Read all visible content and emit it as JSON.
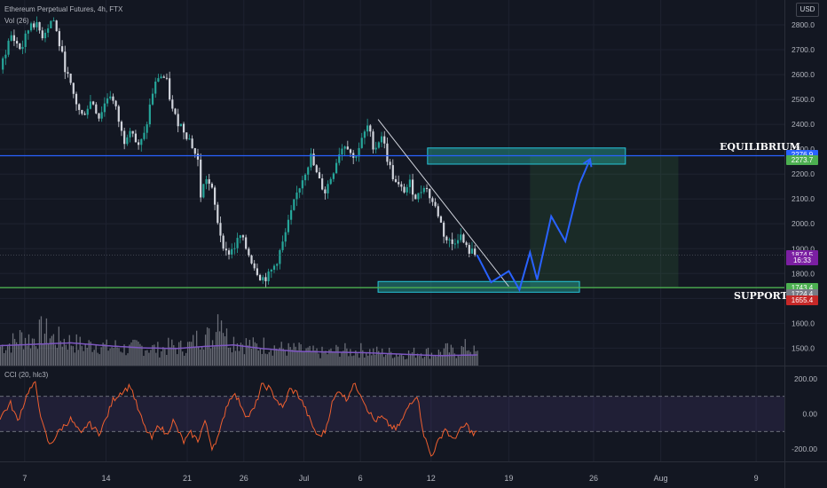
{
  "chart_data": {
    "type": "candlestick",
    "instrument": "Ethereum Perpetual Futures, 4h, FTX",
    "volume_legend": "Vol (26)",
    "cci_legend": "CCI (20, hlc3)",
    "currency": "USD",
    "x_ticks": [
      "7",
      "14",
      "21",
      "26",
      "Jul",
      "6",
      "12",
      "19",
      "26",
      "Aug",
      "9"
    ],
    "price_ticks": [
      2800,
      2700,
      2600,
      2500,
      2400,
      2300,
      2200,
      2100,
      2000,
      1900,
      1800,
      1700,
      1600,
      1500
    ],
    "price_tick_labels": [
      "2800.0",
      "2700.0",
      "2600.0",
      "2500.0",
      "2400.0",
      "2300.0",
      "2200.0",
      "2100.0",
      "2000.0",
      "1900.0",
      "1800.0",
      "1700.0",
      "1600.0",
      "1500.0"
    ],
    "price_range": [
      1430,
      2900
    ],
    "cci_ticks": [
      200,
      0,
      -200
    ],
    "cci_tick_labels": [
      "200.00",
      "0.00",
      "-200.00"
    ],
    "cci_range": [
      -270,
      270
    ],
    "cci_bands": [
      100,
      -100
    ],
    "price_path": [
      [
        0,
        2620
      ],
      [
        3,
        2760
      ],
      [
        6,
        2700
      ],
      [
        9,
        2820
      ],
      [
        12,
        2760
      ],
      [
        15,
        2830
      ],
      [
        18,
        2650
      ],
      [
        20,
        2550
      ],
      [
        23,
        2430
      ],
      [
        26,
        2500
      ],
      [
        28,
        2430
      ],
      [
        31,
        2530
      ],
      [
        33,
        2450
      ],
      [
        35,
        2330
      ],
      [
        37,
        2400
      ],
      [
        39,
        2300
      ],
      [
        41,
        2360
      ],
      [
        43,
        2520
      ],
      [
        45,
        2600
      ],
      [
        47,
        2580
      ],
      [
        49,
        2440
      ],
      [
        52,
        2380
      ],
      [
        54,
        2330
      ],
      [
        56,
        2250
      ],
      [
        57,
        2080
      ],
      [
        58,
        2200
      ],
      [
        60,
        2130
      ],
      [
        62,
        1980
      ],
      [
        64,
        1880
      ],
      [
        66,
        1900
      ],
      [
        68,
        1950
      ],
      [
        70,
        1890
      ],
      [
        72,
        1830
      ],
      [
        74,
        1780
      ],
      [
        76,
        1790
      ],
      [
        78,
        1840
      ],
      [
        80,
        1920
      ],
      [
        82,
        2020
      ],
      [
        84,
        2120
      ],
      [
        86,
        2200
      ],
      [
        88,
        2270
      ],
      [
        90,
        2180
      ],
      [
        92,
        2130
      ],
      [
        94,
        2200
      ],
      [
        96,
        2290
      ],
      [
        98,
        2330
      ],
      [
        100,
        2260
      ],
      [
        102,
        2320
      ],
      [
        104,
        2390
      ],
      [
        106,
        2300
      ],
      [
        108,
        2360
      ],
      [
        110,
        2240
      ],
      [
        112,
        2160
      ],
      [
        114,
        2130
      ],
      [
        116,
        2160
      ],
      [
        118,
        2100
      ],
      [
        120,
        2160
      ],
      [
        122,
        2100
      ],
      [
        124,
        2040
      ],
      [
        126,
        1940
      ],
      [
        128,
        1920
      ],
      [
        130,
        1960
      ],
      [
        132,
        1900
      ],
      [
        134,
        1880
      ],
      [
        135,
        1875
      ]
    ],
    "volume_profile": [
      [
        0,
        0.3
      ],
      [
        3,
        0.35
      ],
      [
        6,
        0.45
      ],
      [
        9,
        0.4
      ],
      [
        12,
        0.55
      ],
      [
        15,
        0.42
      ],
      [
        18,
        0.4
      ],
      [
        21,
        0.35
      ],
      [
        24,
        0.3
      ],
      [
        27,
        0.35
      ],
      [
        30,
        0.28
      ],
      [
        33,
        0.3
      ],
      [
        36,
        0.25
      ],
      [
        39,
        0.3
      ],
      [
        42,
        0.28
      ],
      [
        45,
        0.25
      ],
      [
        48,
        0.3
      ],
      [
        51,
        0.28
      ],
      [
        54,
        0.32
      ],
      [
        57,
        0.5
      ],
      [
        60,
        0.4
      ],
      [
        62,
        0.95
      ],
      [
        64,
        0.45
      ],
      [
        66,
        0.4
      ],
      [
        69,
        0.35
      ],
      [
        72,
        0.3
      ],
      [
        75,
        0.32
      ],
      [
        78,
        0.28
      ],
      [
        81,
        0.25
      ],
      [
        84,
        0.25
      ],
      [
        87,
        0.22
      ],
      [
        90,
        0.2
      ],
      [
        93,
        0.2
      ],
      [
        96,
        0.25
      ],
      [
        99,
        0.22
      ],
      [
        102,
        0.24
      ],
      [
        105,
        0.22
      ],
      [
        108,
        0.2
      ],
      [
        111,
        0.2
      ],
      [
        114,
        0.18
      ],
      [
        117,
        0.2
      ],
      [
        120,
        0.22
      ],
      [
        123,
        0.18
      ],
      [
        126,
        0.25
      ],
      [
        129,
        0.2
      ],
      [
        132,
        0.3
      ],
      [
        135,
        0.18
      ]
    ],
    "volume_ma": [
      [
        0,
        0.28
      ],
      [
        10,
        0.3
      ],
      [
        20,
        0.32
      ],
      [
        30,
        0.28
      ],
      [
        40,
        0.25
      ],
      [
        50,
        0.24
      ],
      [
        58,
        0.27
      ],
      [
        66,
        0.29
      ],
      [
        74,
        0.24
      ],
      [
        84,
        0.2
      ],
      [
        94,
        0.19
      ],
      [
        104,
        0.18
      ],
      [
        114,
        0.16
      ],
      [
        124,
        0.14
      ],
      [
        135,
        0.15
      ]
    ],
    "cci_path": [
      [
        0,
        -20
      ],
      [
        3,
        60
      ],
      [
        5,
        -40
      ],
      [
        8,
        130
      ],
      [
        10,
        170
      ],
      [
        12,
        -60
      ],
      [
        14,
        -180
      ],
      [
        17,
        -90
      ],
      [
        20,
        -30
      ],
      [
        23,
        -120
      ],
      [
        25,
        -50
      ],
      [
        28,
        -110
      ],
      [
        30,
        -30
      ],
      [
        32,
        80
      ],
      [
        34,
        120
      ],
      [
        37,
        160
      ],
      [
        39,
        30
      ],
      [
        41,
        -80
      ],
      [
        43,
        -140
      ],
      [
        45,
        -60
      ],
      [
        47,
        -120
      ],
      [
        49,
        -40
      ],
      [
        52,
        -160
      ],
      [
        54,
        -110
      ],
      [
        56,
        -150
      ],
      [
        58,
        -40
      ],
      [
        60,
        -190
      ],
      [
        62,
        -120
      ],
      [
        64,
        40
      ],
      [
        66,
        120
      ],
      [
        68,
        60
      ],
      [
        70,
        -20
      ],
      [
        72,
        30
      ],
      [
        74,
        160
      ],
      [
        76,
        150
      ],
      [
        78,
        90
      ],
      [
        80,
        30
      ],
      [
        82,
        140
      ],
      [
        84,
        120
      ],
      [
        86,
        50
      ],
      [
        88,
        -50
      ],
      [
        90,
        -130
      ],
      [
        92,
        -100
      ],
      [
        94,
        60
      ],
      [
        96,
        140
      ],
      [
        98,
        80
      ],
      [
        100,
        170
      ],
      [
        102,
        120
      ],
      [
        104,
        30
      ],
      [
        106,
        -40
      ],
      [
        108,
        -20
      ],
      [
        110,
        -60
      ],
      [
        112,
        -90
      ],
      [
        114,
        -30
      ],
      [
        116,
        60
      ],
      [
        118,
        110
      ],
      [
        120,
        -120
      ],
      [
        122,
        -240
      ],
      [
        124,
        -160
      ],
      [
        126,
        -80
      ],
      [
        128,
        -150
      ],
      [
        130,
        -100
      ],
      [
        132,
        -60
      ],
      [
        134,
        -120
      ],
      [
        135,
        -100
      ]
    ],
    "equilibrium_level": 2273.7,
    "support_level": 1743.4,
    "trendline": [
      [
        107,
        2420
      ],
      [
        144,
        1748
      ]
    ],
    "equilibrium_zone": {
      "x_from": 121,
      "x_to": 177,
      "price_from": 2240,
      "price_to": 2305
    },
    "support_zone": {
      "x_from": 107,
      "x_to": 164,
      "price_from": 1725,
      "price_to": 1768
    },
    "target_zone": {
      "x_from": 150,
      "x_to": 192,
      "price_from": 1743.4,
      "price_to": 2273.7
    },
    "stop_zone": {
      "x_from": 150,
      "x_to": 192,
      "price_from": 1655.4,
      "price_to": 1743.4
    },
    "projection_path": [
      [
        135,
        1875
      ],
      [
        139,
        1765
      ],
      [
        144,
        1810
      ],
      [
        147,
        1735
      ],
      [
        150,
        1885
      ],
      [
        152,
        1775
      ],
      [
        156,
        2030
      ],
      [
        160,
        1930
      ],
      [
        164,
        2160
      ],
      [
        167,
        2260
      ]
    ],
    "x_tick_positions": [
      7,
      30,
      53,
      69,
      86,
      102,
      122,
      144,
      168,
      187,
      214
    ],
    "labels": {
      "equilibrium": "EQUILIBRIUM",
      "support": "SUPPORT"
    },
    "price_tags": [
      {
        "value": "2276.9",
        "color": "#2962ff",
        "price": 2276.9
      },
      {
        "value": "2273.7",
        "color": "#4caf50",
        "price": 2255.0
      },
      {
        "value": "1874.5",
        "color": "#7b1fa2",
        "price": 1874.5
      },
      {
        "value": "16:33",
        "color": "#7b1fa2",
        "price": 1853.0
      },
      {
        "value": "1743.4",
        "color": "#4caf50",
        "price": 1743.4
      },
      {
        "value": "1724.4",
        "color": "#787b86",
        "price": 1719.0
      },
      {
        "value": "1655.4",
        "color": "#c62828",
        "price": 1692.0
      }
    ],
    "colors": {
      "background": "#131722",
      "bull": "#26a69a",
      "bear": "#d1d4dc",
      "equilibrium_line": "#2962ff",
      "support_line": "#4caf50",
      "projection": "#2962ff",
      "cci_line": "#ef5f2f",
      "volume_ma": "#7e57c2",
      "zone": "#26a69a"
    }
  }
}
